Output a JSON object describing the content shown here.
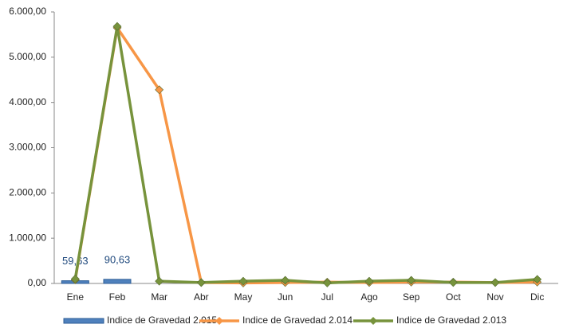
{
  "chart_data": {
    "type": "combo",
    "categories": [
      "Ene",
      "Feb",
      "Mar",
      "Abr",
      "May",
      "Jun",
      "Jul",
      "Ago",
      "Sep",
      "Oct",
      "Nov",
      "Dic"
    ],
    "ylim": [
      0,
      6000
    ],
    "yticks": [
      {
        "value": 0,
        "label": "0,00"
      },
      {
        "value": 1000,
        "label": "1.000,00"
      },
      {
        "value": 2000,
        "label": "2.000,00"
      },
      {
        "value": 3000,
        "label": "3.000,00"
      },
      {
        "value": 4000,
        "label": "4.000,00"
      },
      {
        "value": 5000,
        "label": "5.000,00"
      },
      {
        "value": 6000,
        "label": "6.000,00"
      }
    ],
    "grid": false,
    "legend": "bottom",
    "series": [
      {
        "name": "Indice de Gravedad 2.015",
        "type": "bar",
        "color": "#4f81bd",
        "values": [
          59.63,
          90.63,
          null,
          null,
          null,
          null,
          null,
          null,
          null,
          null,
          null,
          null
        ],
        "value_labels": [
          "59,63",
          "90,63",
          null,
          null,
          null,
          null,
          null,
          null,
          null,
          null,
          null,
          null
        ]
      },
      {
        "name": "Indice de Gravedad 2.014",
        "type": "line",
        "color": "#f79646",
        "values": [
          80,
          5650,
          4280,
          20,
          10,
          20,
          30,
          20,
          30,
          30,
          20,
          30
        ]
      },
      {
        "name": "Indice de Gravedad  2.013",
        "type": "line",
        "color": "#77933c",
        "values": [
          100,
          5680,
          50,
          20,
          50,
          70,
          10,
          50,
          70,
          20,
          20,
          90
        ]
      }
    ]
  }
}
